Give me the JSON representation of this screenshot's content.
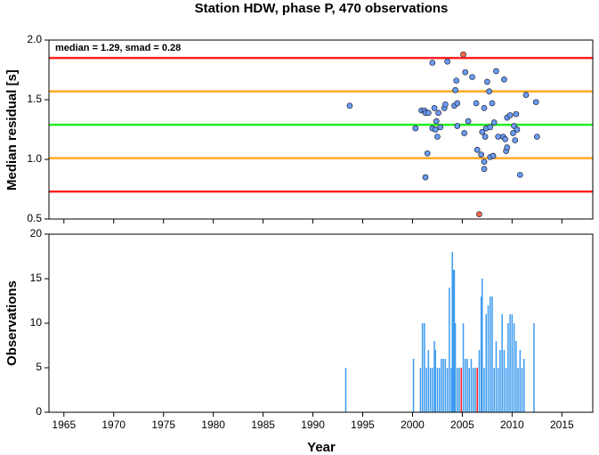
{
  "chart_data": [
    {
      "type": "scatter",
      "title": "Station HDW, phase P, 470 observations",
      "ylabel": "Median residual [s]",
      "annotation": "median = 1.29, smad = 0.28",
      "xlim": [
        1963.5,
        2018.1
      ],
      "ylim": [
        0.5,
        2.0
      ],
      "yticks": [
        0.5,
        {
          "value": 1.0,
          "label": "1.0"
        },
        1.5,
        {
          "value": 2.0,
          "label": "2.0"
        }
      ],
      "hlines": [
        {
          "value": 1.85,
          "color": "#ff2020"
        },
        {
          "value": 1.57,
          "color": "#ffaa22"
        },
        {
          "value": 1.29,
          "color": "#22ee22"
        },
        {
          "value": 1.01,
          "color": "#ffaa22"
        },
        {
          "value": 0.73,
          "color": "#ff2020"
        }
      ],
      "series": [
        {
          "color": "#6a9cf5",
          "x": [
            1993.7,
            2000.3,
            2000.9,
            2001.2,
            2001.3,
            2001.3,
            2001.5,
            2001.6,
            2002.0,
            2002.0,
            2002.2,
            2002.3,
            2002.4,
            2002.5,
            2002.6,
            2002.8,
            2003.2,
            2003.3,
            2003.5,
            2004.2,
            2004.3,
            2004.4,
            2004.5,
            2004.5,
            2005.2,
            2005.3,
            2005.6,
            2006.0,
            2006.4,
            2006.5,
            2006.9,
            2007.0,
            2007.2,
            2007.2,
            2007.2,
            2007.3,
            2007.4,
            2007.5,
            2007.7,
            2007.8,
            2007.8,
            2008.0,
            2008.1,
            2008.2,
            2008.4,
            2008.6,
            2009.1,
            2009.2,
            2009.3,
            2009.4,
            2009.5,
            2009.5,
            2009.8,
            2010.1,
            2010.2,
            2010.3,
            2010.4,
            2010.5,
            2010.8,
            2011.4,
            2012.4,
            2012.5
          ],
          "values": [
            1.45,
            1.26,
            1.41,
            1.41,
            1.39,
            0.85,
            1.05,
            1.39,
            1.81,
            1.26,
            1.43,
            1.25,
            1.32,
            1.19,
            1.39,
            1.27,
            1.43,
            1.46,
            1.82,
            1.45,
            1.58,
            1.66,
            1.47,
            1.28,
            1.22,
            1.73,
            1.32,
            1.69,
            1.47,
            1.08,
            1.04,
            1.23,
            0.92,
            0.98,
            1.43,
            1.19,
            1.26,
            1.65,
            1.57,
            1.02,
            1.27,
            1.47,
            1.03,
            1.31,
            1.74,
            1.19,
            1.19,
            1.67,
            1.17,
            1.07,
            1.1,
            1.35,
            1.37,
            1.22,
            1.28,
            1.16,
            1.38,
            1.25,
            0.87,
            1.54,
            1.48,
            1.19
          ]
        },
        {
          "color": "#ff6a4a",
          "x": [
            2005.1,
            2006.7
          ],
          "values": [
            1.88,
            0.54
          ]
        }
      ]
    },
    {
      "type": "bar",
      "xlabel": "Year",
      "ylabel": "Observations",
      "xlim": [
        1963.5,
        2018.1
      ],
      "ylim": [
        0,
        20
      ],
      "xticks": [
        1965,
        1970,
        1975,
        1980,
        1985,
        1990,
        1995,
        2000,
        2005,
        2010,
        2015
      ],
      "yticks": [
        0,
        5,
        10,
        15,
        20
      ],
      "series": [
        {
          "color": "#3d9bf0",
          "x": [
            1993.3,
            2000.1,
            2000.8,
            2001.0,
            2001.2,
            2001.4,
            2001.6,
            2001.8,
            2002.0,
            2002.2,
            2002.3,
            2002.5,
            2002.7,
            2002.9,
            2003.1,
            2003.3,
            2003.5,
            2003.7,
            2003.9,
            2004.0,
            2004.1,
            2004.2,
            2004.3,
            2004.5,
            2004.7,
            2005.1,
            2005.3,
            2005.5,
            2005.7,
            2005.9,
            2006.1,
            2006.3,
            2006.7,
            2006.9,
            2007.0,
            2007.2,
            2007.4,
            2007.6,
            2007.8,
            2008.0,
            2008.2,
            2008.4,
            2008.6,
            2008.8,
            2009.0,
            2009.2,
            2009.4,
            2009.6,
            2009.8,
            2010.0,
            2010.2,
            2010.4,
            2010.6,
            2010.8,
            2011.0,
            2011.2,
            2012.2
          ],
          "values": [
            5,
            6,
            5,
            10,
            10,
            5,
            7,
            5,
            5,
            8,
            7,
            5,
            5,
            6,
            6,
            6,
            5,
            14,
            5,
            18,
            16,
            16,
            10,
            5,
            5,
            10,
            6,
            6,
            5,
            6,
            5,
            5,
            7,
            13,
            15,
            5,
            11,
            12,
            13,
            13,
            5,
            8,
            5,
            7,
            11,
            7,
            5,
            10,
            11,
            11,
            10,
            8,
            5,
            7,
            5,
            6,
            10
          ]
        },
        {
          "color": "#ff2020",
          "x": [
            2004.9,
            2006.5
          ],
          "values": [
            5,
            5
          ]
        }
      ]
    }
  ]
}
